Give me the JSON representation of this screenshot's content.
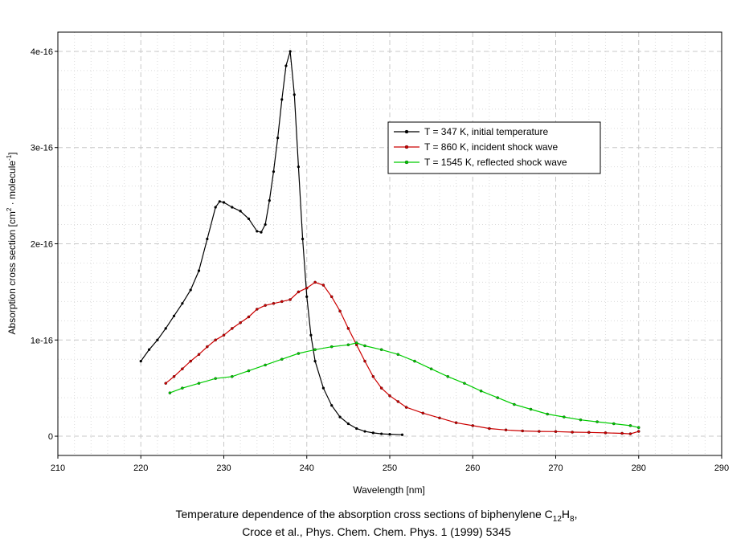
{
  "chart_data": {
    "type": "line",
    "title": "Temperature dependence of the absorption cross sections of biphenylene C12H8,",
    "caption": {
      "line1_prefix": "Temperature dependence of the absorption cross sections of biphenylene C",
      "line1_sub1": "12",
      "line1_mid": "H",
      "line1_sub2": "8",
      "line1_suffix": ",",
      "line2": "Croce et al., Phys. Chem. Chem. Phys. 1 (1999) 5345"
    },
    "xlabel": "Wavelength [nm]",
    "ylabel": {
      "prefix": "Absorption cross section [cm",
      "sup1": "2",
      "mid": " · molecule",
      "sup2": "-1",
      "suffix": "]"
    },
    "xlim": [
      210,
      290
    ],
    "ylim": [
      -2e-17,
      4.2e-16
    ],
    "x_ticks": [
      210,
      220,
      230,
      240,
      250,
      260,
      270,
      280,
      290
    ],
    "y_ticks": [
      {
        "value": 0,
        "label": "0"
      },
      {
        "value": 1e-16,
        "label": "1e-16"
      },
      {
        "value": 2e-16,
        "label": "2e-16"
      },
      {
        "value": 3e-16,
        "label": "3e-16"
      },
      {
        "value": 4e-16,
        "label": "4e-16"
      }
    ],
    "grid": true,
    "legend_position": "upper-right-center",
    "series": [
      {
        "name": "T =  347 K, initial temperature",
        "color": "#000000",
        "x": [
          220,
          221,
          222,
          223,
          224,
          225,
          226,
          227,
          228,
          229,
          229.5,
          230,
          231,
          232,
          233,
          234,
          234.5,
          235,
          235.5,
          236,
          236.5,
          237,
          237.5,
          238,
          238.5,
          239,
          239.5,
          240,
          240.5,
          241,
          242,
          243,
          244,
          245,
          246,
          247,
          248,
          249,
          250,
          251.5
        ],
        "values": [
          7.8e-17,
          9e-17,
          1e-16,
          1.12e-16,
          1.25e-16,
          1.38e-16,
          1.52e-16,
          1.72e-16,
          2.05e-16,
          2.38e-16,
          2.44e-16,
          2.43e-16,
          2.38e-16,
          2.34e-16,
          2.26e-16,
          2.13e-16,
          2.12e-16,
          2.2e-16,
          2.45e-16,
          2.75e-16,
          3.1e-16,
          3.5e-16,
          3.85e-16,
          4e-16,
          3.55e-16,
          2.8e-16,
          2.05e-16,
          1.45e-16,
          1.05e-16,
          7.8e-17,
          5e-17,
          3.2e-17,
          2e-17,
          1.3e-17,
          8e-18,
          5e-18,
          3.5e-18,
          2.5e-18,
          2e-18,
          1.5e-18
        ]
      },
      {
        "name": "T =  860 K, incident shock wave",
        "color": "#cc0000",
        "x": [
          223,
          224,
          225,
          226,
          227,
          228,
          229,
          230,
          231,
          232,
          233,
          234,
          235,
          236,
          237,
          238,
          239,
          240,
          241,
          242,
          243,
          244,
          245,
          246,
          247,
          248,
          249,
          250,
          251,
          252,
          254,
          256,
          258,
          260,
          262,
          264,
          266,
          268,
          270,
          272,
          274,
          276,
          278,
          279,
          280
        ],
        "values": [
          5.5e-17,
          6.2e-17,
          7e-17,
          7.8e-17,
          8.5e-17,
          9.3e-17,
          1e-16,
          1.05e-16,
          1.12e-16,
          1.18e-16,
          1.24e-16,
          1.32e-16,
          1.36e-16,
          1.38e-16,
          1.4e-16,
          1.42e-16,
          1.5e-16,
          1.54e-16,
          1.6e-16,
          1.57e-16,
          1.45e-16,
          1.3e-16,
          1.12e-16,
          9.5e-17,
          7.8e-17,
          6.2e-17,
          5e-17,
          4.2e-17,
          3.6e-17,
          3e-17,
          2.4e-17,
          1.9e-17,
          1.4e-17,
          1.1e-17,
          8e-18,
          6.5e-18,
          5.5e-18,
          5e-18,
          4.8e-18,
          4.2e-18,
          4e-18,
          3.5e-18,
          3e-18,
          2.5e-18,
          5e-18
        ]
      },
      {
        "name": "T = 1545 K, reflected shock wave",
        "color": "#00cc00",
        "x": [
          223.5,
          225,
          227,
          229,
          231,
          233,
          235,
          237,
          239,
          241,
          243,
          245,
          246,
          247,
          249,
          251,
          253,
          255,
          257,
          259,
          261,
          263,
          265,
          267,
          269,
          271,
          273,
          275,
          277,
          279,
          280
        ],
        "values": [
          4.5e-17,
          5e-17,
          5.5e-17,
          6e-17,
          6.2e-17,
          6.8e-17,
          7.4e-17,
          8e-17,
          8.6e-17,
          9e-17,
          9.3e-17,
          9.5e-17,
          9.7e-17,
          9.4e-17,
          9e-17,
          8.5e-17,
          7.8e-17,
          7e-17,
          6.2e-17,
          5.5e-17,
          4.7e-17,
          4e-17,
          3.3e-17,
          2.8e-17,
          2.3e-17,
          2e-17,
          1.7e-17,
          1.5e-17,
          1.3e-17,
          1.1e-17,
          9e-18
        ]
      }
    ]
  }
}
